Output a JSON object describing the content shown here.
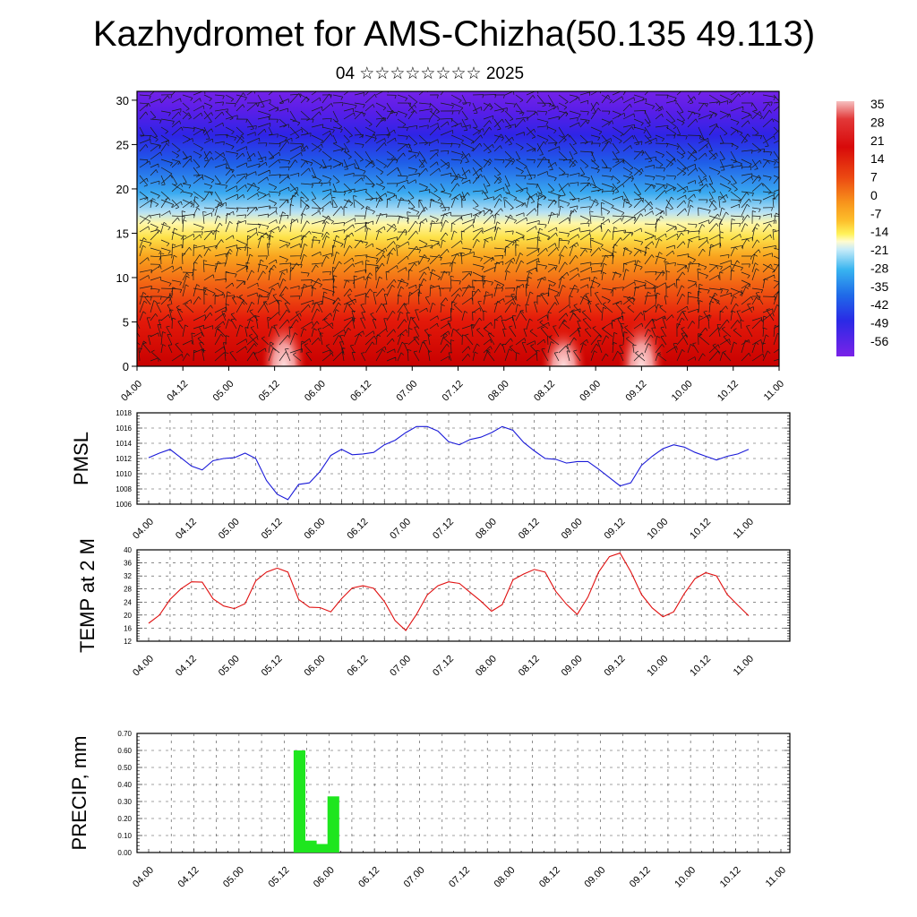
{
  "title": "Kazhydromet for AMS-Chizha(50.135 49.113)",
  "subtitle": "04 ☆☆☆☆☆☆☆☆ 2025",
  "colors": {
    "pmsl_line": "#1a1ad8",
    "temp_line": "#e01010",
    "precip_bar": "#1ee61e",
    "grid": "#444444",
    "axis": "#000000"
  },
  "chart_data": [
    {
      "id": "cross-section",
      "type": "heatmap",
      "title": "",
      "xlabel": "",
      "ylabel": "",
      "x_ticks": [
        "04.00",
        "04.12",
        "05.00",
        "05.12",
        "06.00",
        "06.12",
        "07.00",
        "07.12",
        "08.00",
        "08.12",
        "09.00",
        "09.12",
        "10.00",
        "10.12",
        "11.00"
      ],
      "y_ticks": [
        0,
        5,
        10,
        15,
        20,
        25,
        30
      ],
      "ylim": [
        0,
        31
      ],
      "colorbar_labels": [
        35,
        28,
        21,
        14,
        7,
        0,
        -7,
        -14,
        -21,
        -28,
        -35,
        -42,
        -49,
        -56
      ],
      "colorbar_range": [
        -60,
        38
      ],
      "overlay": "wind barbs",
      "warm_cores": [
        {
          "x_index": 3.2,
          "height": 5,
          "value": 36
        },
        {
          "x_index": 9.3,
          "height": 4,
          "value": 34
        },
        {
          "x_index": 11.0,
          "height": 5,
          "value": 38
        }
      ]
    },
    {
      "id": "pmsl",
      "type": "line",
      "ylabel": "PMSL",
      "ylim": [
        1006,
        1018
      ],
      "y_ticks": [
        1006,
        1008,
        1010,
        1012,
        1014,
        1016,
        1018
      ],
      "x_ticks": [
        "04.00",
        "04.12",
        "05.00",
        "05.12",
        "06.00",
        "06.12",
        "07.00",
        "07.12",
        "08.00",
        "08.12",
        "09.00",
        "09.12",
        "10.00",
        "10.12",
        "11.00"
      ],
      "step_hours": 3,
      "values": [
        1012.1,
        1012.7,
        1013.2,
        1012.1,
        1011.0,
        1010.5,
        1011.7,
        1012.0,
        1012.1,
        1012.7,
        1012.0,
        1009.1,
        1007.3,
        1006.6,
        1008.6,
        1008.8,
        1010.3,
        1012.4,
        1013.2,
        1012.5,
        1012.6,
        1012.8,
        1013.8,
        1014.4,
        1015.4,
        1016.2,
        1016.2,
        1015.6,
        1014.2,
        1013.8,
        1014.5,
        1014.8,
        1015.4,
        1016.2,
        1015.7,
        1014.1,
        1013.0,
        1012.0,
        1011.9,
        1011.4,
        1011.6,
        1011.6,
        1010.6,
        1009.5,
        1008.4,
        1008.8,
        1011.1,
        1012.3,
        1013.3,
        1013.8,
        1013.5,
        1012.8,
        1012.3,
        1011.8,
        1012.3,
        1012.6,
        1013.2
      ]
    },
    {
      "id": "temp2m",
      "type": "line",
      "ylabel": "TEMP at 2 M",
      "ylim": [
        12,
        40
      ],
      "y_ticks": [
        12,
        16,
        20,
        24,
        28,
        32,
        36,
        40
      ],
      "x_ticks": [
        "04.00",
        "04.12",
        "05.00",
        "05.12",
        "06.00",
        "06.12",
        "07.00",
        "07.12",
        "08.00",
        "08.12",
        "09.00",
        "09.12",
        "10.00",
        "10.12",
        "11.00"
      ],
      "step_hours": 3,
      "values": [
        17.5,
        20.0,
        24.8,
        28.0,
        30.2,
        30.1,
        25.0,
        22.8,
        22.0,
        23.5,
        30.5,
        33.2,
        34.4,
        33.2,
        24.8,
        22.4,
        22.3,
        21.0,
        25.0,
        28.3,
        29.0,
        28.2,
        24.2,
        18.3,
        15.3,
        20.2,
        26.2,
        29.0,
        30.2,
        29.7,
        27.0,
        24.3,
        21.2,
        23.2,
        30.8,
        32.6,
        34.0,
        33.2,
        27.3,
        23.3,
        20.2,
        25.5,
        33.2,
        37.9,
        39.0,
        33.3,
        26.3,
        22.2,
        19.5,
        21.0,
        26.6,
        31.2,
        33.0,
        32.0,
        26.3,
        23.0,
        19.8
      ]
    },
    {
      "id": "precip",
      "type": "bar",
      "ylabel": "PRECIP, mm",
      "ylim": [
        0,
        0.7
      ],
      "y_ticks": [
        "0.00",
        "0.10",
        "0.20",
        "0.30",
        "0.40",
        "0.50",
        "0.60",
        "0.70"
      ],
      "x_ticks": [
        "04.00",
        "04.12",
        "05.00",
        "05.12",
        "06.00",
        "06.12",
        "07.00",
        "07.12",
        "08.00",
        "08.12",
        "09.00",
        "09.12",
        "10.00",
        "10.12",
        "11.00"
      ],
      "step_hours": 3,
      "bars": [
        {
          "step": 13,
          "value": 0.6
        },
        {
          "step": 14,
          "value": 0.07
        },
        {
          "step": 15,
          "value": 0.05
        },
        {
          "step": 16,
          "value": 0.33
        }
      ]
    }
  ]
}
